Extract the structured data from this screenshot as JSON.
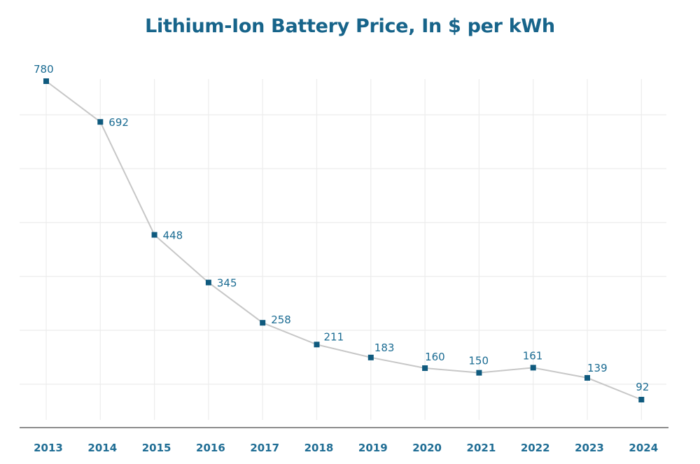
{
  "chart_data": {
    "type": "line",
    "title": "Lithium-Ion Battery Price, In $ per kWh",
    "xlabel": "",
    "ylabel": "",
    "categories": [
      "2013",
      "2014",
      "2015",
      "2016",
      "2017",
      "2018",
      "2019",
      "2020",
      "2021",
      "2022",
      "2023",
      "2024"
    ],
    "series": [
      {
        "name": "Lithium-Ion Battery Price ($/kWh)",
        "values": [
          780,
          692,
          448,
          345,
          258,
          211,
          183,
          160,
          150,
          161,
          139,
          92
        ]
      }
    ],
    "data_labels": [
      "780",
      "692",
      "448",
      "345",
      "258",
      "211",
      "183",
      "160",
      "150",
      "161",
      "139",
      "92"
    ],
    "ylim": [
      0,
      850
    ],
    "grid": true,
    "legend": "none",
    "colors": {
      "title": "#17648a",
      "line": "#c7c7c7",
      "marker": "#0f5a7e",
      "label": "#1a6b92"
    }
  }
}
